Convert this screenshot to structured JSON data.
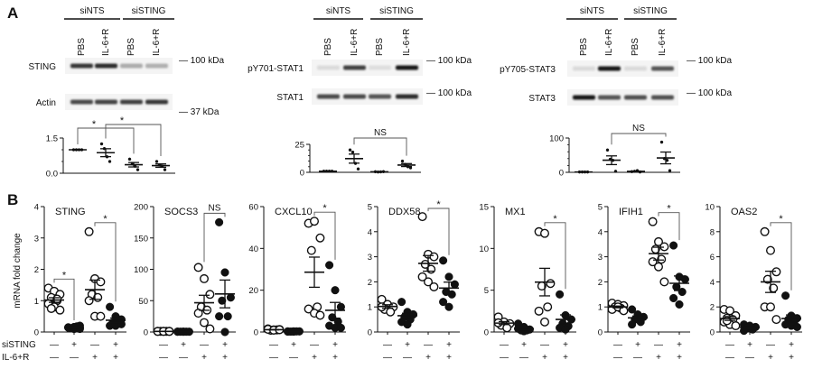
{
  "panel_labels": {
    "a": "A",
    "b": "B"
  },
  "blots": [
    {
      "group_labels": [
        "siNTS",
        "siSTING"
      ],
      "lane_labels": [
        "PBS",
        "IL-6+R",
        "PBS",
        "IL-6+R"
      ],
      "rows": [
        {
          "name": "STING",
          "intensity": [
            0.85,
            0.9,
            0.3,
            0.28
          ],
          "marker": "— 100 kDa"
        },
        {
          "name": "Actin",
          "intensity": [
            0.75,
            0.78,
            0.8,
            0.85
          ],
          "marker": "— 37 kDa"
        }
      ]
    },
    {
      "group_labels": [
        "siNTS",
        "siSTING"
      ],
      "lane_labels": [
        "PBS",
        "IL-6+R",
        "PBS",
        "IL-6+R"
      ],
      "rows": [
        {
          "name": "pY701-STAT1",
          "intensity": [
            0.08,
            0.8,
            0.06,
            1.0
          ],
          "marker": "— 100 kDa"
        },
        {
          "name": "STAT1",
          "intensity": [
            0.75,
            0.75,
            0.7,
            0.9
          ],
          "marker": "— 100 kDa"
        }
      ]
    },
    {
      "group_labels": [
        "siNTS",
        "siSTING"
      ],
      "lane_labels": [
        "PBS",
        "IL-6+R",
        "PBS",
        "IL-6+R"
      ],
      "rows": [
        {
          "name": "pY705-STAT3",
          "intensity": [
            0.08,
            1.0,
            0.08,
            0.7
          ],
          "marker": "— 100 kDa"
        },
        {
          "name": "STAT3",
          "intensity": [
            1.0,
            0.7,
            0.72,
            0.72
          ],
          "marker": "— 100 kDa"
        }
      ]
    }
  ],
  "ylabel": "mRNA fold change",
  "conditions": {
    "row_labels": [
      "siSTING",
      "IL-6+R"
    ],
    "sisting": [
      "—",
      "+",
      "—",
      "+"
    ],
    "il6r": [
      "—",
      "—",
      "+",
      "+"
    ]
  },
  "chart_data": [
    {
      "type": "scatter",
      "title": "",
      "ylim": [
        0,
        1.5
      ],
      "yticks": [
        0,
        1.5
      ],
      "ytick_labels": [
        "0.0",
        "1.5"
      ],
      "categories": [
        "siNTS PBS",
        "siNTS IL-6+R",
        "siSTING PBS",
        "siSTING IL-6+R"
      ],
      "series": [
        {
          "values": [
            1,
            1,
            1,
            1
          ]
        },
        {
          "values": [
            1.25,
            1.05,
            0.7,
            0.5
          ]
        },
        {
          "values": [
            0.6,
            0.4,
            0.3,
            0.15
          ]
        },
        {
          "values": [
            0.5,
            0.35,
            0.3,
            0.15
          ]
        }
      ],
      "comparisons": [
        {
          "from": 0,
          "to": 2,
          "label": "*"
        },
        {
          "from": 1,
          "to": 3,
          "label": "*"
        }
      ]
    },
    {
      "type": "scatter",
      "title": "",
      "ylim": [
        0,
        25
      ],
      "yticks": [
        0,
        25
      ],
      "ytick_labels": [
        "0",
        "25"
      ],
      "categories": [
        "siNTS PBS",
        "siNTS IL-6+R",
        "siSTING PBS",
        "siSTING IL-6+R"
      ],
      "series": [
        {
          "values": [
            1,
            1,
            1,
            1
          ]
        },
        {
          "values": [
            20,
            18,
            8,
            3
          ]
        },
        {
          "values": [
            0.5,
            0.3,
            0.4,
            0.6
          ]
        },
        {
          "values": [
            10,
            7,
            5,
            4
          ]
        }
      ],
      "comparisons": [
        {
          "from": 1,
          "to": 3,
          "label": "NS"
        }
      ]
    },
    {
      "type": "scatter",
      "title": "",
      "ylim": [
        0,
        100
      ],
      "yticks": [
        0,
        100
      ],
      "ytick_labels": [
        "0",
        "100"
      ],
      "categories": [
        "siNTS PBS",
        "siNTS IL-6+R",
        "siSTING PBS",
        "siSTING IL-6+R"
      ],
      "series": [
        {
          "values": [
            1,
            1,
            1,
            1
          ]
        },
        {
          "values": [
            65,
            38,
            35,
            3
          ]
        },
        {
          "values": [
            2,
            3,
            5,
            1
          ]
        },
        {
          "values": [
            88,
            40,
            35,
            5
          ]
        }
      ],
      "comparisons": [
        {
          "from": 1,
          "to": 3,
          "label": "NS"
        }
      ]
    },
    {
      "type": "scatter",
      "title": "STING",
      "ylim": [
        0,
        4
      ],
      "yticks": [
        0,
        1,
        2,
        3,
        4
      ],
      "ytick_labels": [
        "0",
        "1",
        "2",
        "3",
        "4"
      ],
      "series": [
        {
          "values": [
            1.4,
            1.3,
            1.2,
            1.1,
            1.0,
            0.9,
            0.8,
            0.7,
            0.75,
            1.05
          ]
        },
        {
          "values": [
            0.15,
            0.1,
            0.2,
            0.12,
            0.18,
            0.14,
            0.16,
            0.1
          ]
        },
        {
          "values": [
            3.2,
            1.7,
            1.6,
            1.2,
            1.1,
            1.0,
            0.5,
            0.5
          ]
        },
        {
          "values": [
            0.8,
            0.5,
            0.4,
            0.3,
            0.35,
            0.2,
            0.2,
            0.25
          ]
        }
      ],
      "comparisons": [
        {
          "from": 0,
          "to": 1,
          "label": "*"
        },
        {
          "from": 2,
          "to": 3,
          "label": "*"
        }
      ]
    },
    {
      "type": "scatter",
      "title": "SOCS3",
      "ylim": [
        0,
        200
      ],
      "yticks": [
        0,
        50,
        100,
        150,
        200
      ],
      "ytick_labels": [
        "0",
        "50",
        "100",
        "150",
        "200"
      ],
      "series": [
        {
          "values": [
            1,
            1,
            1,
            1,
            1,
            1,
            1,
            1
          ]
        },
        {
          "values": [
            0.5,
            0.5,
            0.5,
            0.5,
            0.5,
            0.5,
            0.5
          ]
        },
        {
          "values": [
            103,
            85,
            60,
            40,
            35,
            30,
            15,
            5
          ]
        },
        {
          "values": [
            175,
            95,
            55,
            50,
            25,
            25,
            0
          ]
        }
      ],
      "comparisons": [
        {
          "from": 2,
          "to": 3,
          "label": "NS"
        }
      ]
    },
    {
      "type": "scatter",
      "title": "CXCL10",
      "ylim": [
        0,
        60
      ],
      "yticks": [
        0,
        20,
        40,
        60
      ],
      "ytick_labels": [
        "0",
        "20",
        "40",
        "60"
      ],
      "series": [
        {
          "values": [
            1.5,
            1,
            1.2,
            0.8,
            1,
            1.3,
            0.9,
            1.1
          ]
        },
        {
          "values": [
            0.3,
            0.2,
            0.3,
            0.2,
            0.3,
            0.2,
            0.3
          ]
        },
        {
          "values": [
            52,
            53,
            45,
            39,
            12,
            11,
            9,
            8
          ]
        },
        {
          "values": [
            32,
            20,
            12,
            7,
            5,
            3,
            2,
            2
          ]
        }
      ],
      "comparisons": [
        {
          "from": 2,
          "to": 3,
          "label": "*"
        }
      ]
    },
    {
      "type": "scatter",
      "title": "DDX58",
      "ylim": [
        0,
        5
      ],
      "yticks": [
        0,
        1,
        2,
        3,
        4,
        5
      ],
      "ytick_labels": [
        "0",
        "1",
        "2",
        "3",
        "4",
        "5"
      ],
      "series": [
        {
          "values": [
            1.3,
            1.1,
            1.0,
            0.9,
            0.8,
            1.0
          ]
        },
        {
          "values": [
            1.2,
            0.8,
            0.7,
            0.6,
            0.5,
            0.4,
            0.3,
            0.7
          ]
        },
        {
          "values": [
            4.6,
            3.1,
            3.0,
            2.7,
            2.5,
            2.2,
            2.0,
            1.8
          ]
        },
        {
          "values": [
            2.85,
            2.2,
            1.9,
            1.6,
            1.5,
            1.2,
            1.0
          ]
        }
      ],
      "comparisons": [
        {
          "from": 2,
          "to": 3,
          "label": "*"
        }
      ]
    },
    {
      "type": "scatter",
      "title": "MX1",
      "ylim": [
        0,
        15
      ],
      "yticks": [
        0,
        5,
        10,
        15
      ],
      "ytick_labels": [
        "0",
        "5",
        "10",
        "15"
      ],
      "series": [
        {
          "values": [
            1.8,
            1.2,
            1.0,
            0.8,
            0.5,
            1.1
          ]
        },
        {
          "values": [
            1.0,
            0.6,
            0.3,
            0.2,
            0.2,
            0.4,
            0.1
          ]
        },
        {
          "values": [
            12,
            11.8,
            5.8,
            5.5,
            3,
            2.5,
            1.2
          ]
        },
        {
          "values": [
            4.5,
            2,
            1.5,
            1,
            0.7,
            0.5,
            0.3
          ]
        }
      ],
      "comparisons": [
        {
          "from": 2,
          "to": 3,
          "label": "*"
        }
      ]
    },
    {
      "type": "scatter",
      "title": "IFIH1",
      "ylim": [
        0,
        5
      ],
      "yticks": [
        0,
        1,
        2,
        3,
        4,
        5
      ],
      "ytick_labels": [
        "0",
        "1",
        "2",
        "3",
        "4",
        "5"
      ],
      "series": [
        {
          "values": [
            1.15,
            1.1,
            1.05,
            1.0,
            0.95,
            0.9,
            1.0,
            0.85
          ]
        },
        {
          "values": [
            0.9,
            0.7,
            0.6,
            0.5,
            0.4,
            0.3,
            0.55
          ]
        },
        {
          "values": [
            4.4,
            3.6,
            3.4,
            3.3,
            2.9,
            2.8,
            2.6,
            2.0
          ]
        },
        {
          "values": [
            3.45,
            2.2,
            2.1,
            1.8,
            1.6,
            1.35,
            1.1
          ]
        }
      ],
      "comparisons": [
        {
          "from": 2,
          "to": 3,
          "label": "*"
        }
      ]
    },
    {
      "type": "scatter",
      "title": "OAS2",
      "ylim": [
        0,
        10
      ],
      "yticks": [
        0,
        2,
        4,
        6,
        8,
        10
      ],
      "ytick_labels": [
        "0",
        "2",
        "4",
        "6",
        "8",
        "10"
      ],
      "series": [
        {
          "values": [
            1.8,
            1.7,
            1.3,
            1.1,
            1.0,
            0.8,
            0.6,
            0.5,
            0.9
          ]
        },
        {
          "values": [
            0.6,
            0.5,
            0.4,
            0.3,
            0.2,
            0.1,
            0.45
          ]
        },
        {
          "values": [
            8,
            6.5,
            4.8,
            4.2,
            3.5,
            2.0,
            2.0,
            1.0
          ]
        },
        {
          "values": [
            2.9,
            1.3,
            1.1,
            1.0,
            0.8,
            0.6,
            0.5,
            0.4
          ]
        }
      ],
      "comparisons": [
        {
          "from": 2,
          "to": 3,
          "label": "*"
        }
      ]
    }
  ]
}
